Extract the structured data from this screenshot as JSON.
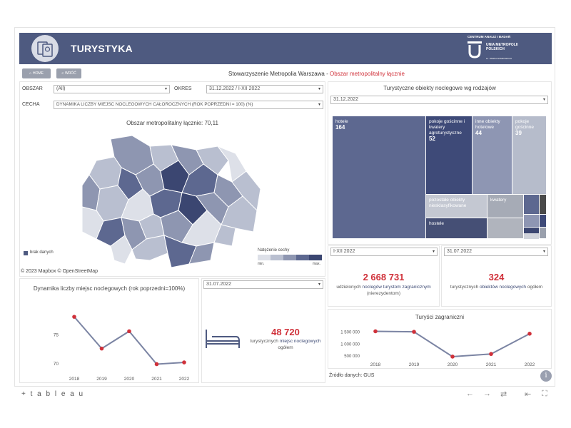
{
  "header": {
    "title": "TURYSTYKA",
    "logo": {
      "caption": "CENTRUM ANALIZ I BADAŃ",
      "name": "UNIA METROPOLII POLSKICH",
      "sub": "im. PAWŁA ADAMOWICZA"
    }
  },
  "nav": {
    "home_label": "HOME",
    "back_label": "WRÓĆ"
  },
  "breadcrumb": {
    "org": "Stowarzyszenie Metropolia Warszawa - ",
    "area": "Obszar metropolitalny łącznie"
  },
  "filters": {
    "obszar_label": "OBSZAR",
    "obszar_value": "(All)",
    "okres_label": "OKRES",
    "okres_value": "31.12.2022 / I-XII 2022",
    "cecha_label": "CECHA",
    "cecha_value": "DYNAMIKA LICZBY MIEJSC NOCLEGOWYCH CAŁOROCZNYCH (ROK POPRZEDNI = 100) (%)"
  },
  "map": {
    "title": "Obszar metropolitalny łącznie: 70,11",
    "legend_nodata": "brak danych",
    "legend_title": "Natężenie cechy",
    "legend_min": "min.",
    "legend_max": "max.",
    "attribution": "© 2023 Mapbox  © OpenStreetMap",
    "colors": [
      "#dde0e8",
      "#b9bfd0",
      "#8e96b1",
      "#5d6890",
      "#3b4671"
    ]
  },
  "treemap": {
    "title": "Turystyczne obiekty noclegowe wg rodzajów",
    "date": "31.12.2022",
    "cells": [
      {
        "label": "hotele",
        "value": "164",
        "color": "#5d6890"
      },
      {
        "label": "pokoje gościnne i kwatery agroturystyczne",
        "value": "52",
        "color": "#3e4a78"
      },
      {
        "label": "inne obiekty hotelowe",
        "value": "44",
        "color": "#8e96b3"
      },
      {
        "label": "pokoje gościnne",
        "value": "39",
        "color": "#b6bccb"
      },
      {
        "label": "pozostałe obiekty niesklasyfikowane",
        "value": "",
        "color": "#c4c8d2"
      },
      {
        "label": "kwatery",
        "value": "",
        "color": "#a6abb6"
      },
      {
        "label": "hostele",
        "value": "",
        "color": "#454f75"
      }
    ]
  },
  "kpi1": {
    "period": "I-XII 2022",
    "value": "2 668 731",
    "text1": "udzielonych ",
    "hl1": "noclegów turystom zagranicznym",
    "text2": " (nierezydentom)"
  },
  "kpi2": {
    "date": "31.07.2022",
    "value": "324",
    "text1": "turystycznych ",
    "hl1": "obiektów noclegowych",
    "text2": " ogółem"
  },
  "kpi3": {
    "date": "31.07.2022",
    "value": "48 720",
    "text1": "turystycznych ",
    "hl1": "miejsc noclegowych",
    "text2": " ogółem"
  },
  "source": "Źródło danych: GUS",
  "tableau": "+ t a b l e a u",
  "chart_data": [
    {
      "type": "line",
      "title": "Dynamika liczby miejsc noclegowych (rok poprzedni=100%)",
      "x": [
        "2018",
        "2019",
        "2020",
        "2021",
        "2022"
      ],
      "y": [
        78,
        72.5,
        75.5,
        69.8,
        70.1
      ],
      "yticks": [
        "75",
        "70"
      ],
      "ylim": [
        68.5,
        79.5
      ],
      "line_color": "#7b84a3",
      "marker_color": "#d0313a"
    },
    {
      "type": "line",
      "title": "Turyści zagraniczni",
      "x": [
        "2018",
        "2019",
        "2020",
        "2021",
        "2022"
      ],
      "y": [
        1500000,
        1480000,
        450000,
        560000,
        1400000
      ],
      "yticks": [
        "1 500 000",
        "1 000 000",
        "500 000"
      ],
      "ylim": [
        300000,
        1750000
      ],
      "line_color": "#7b84a3",
      "marker_color": "#d0313a"
    }
  ]
}
